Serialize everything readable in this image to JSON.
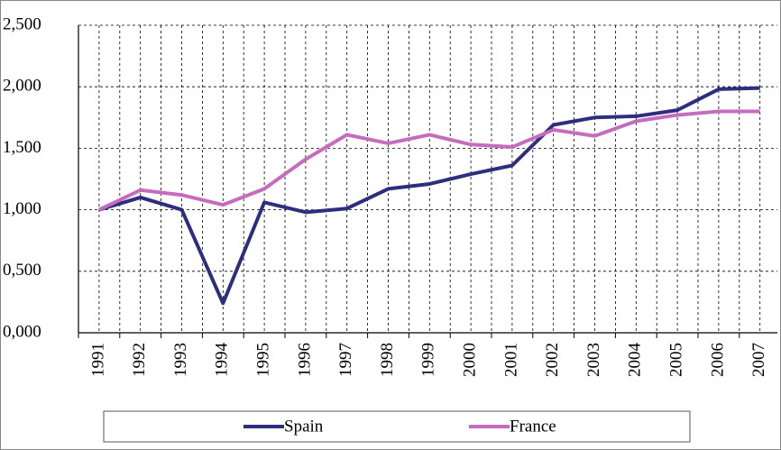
{
  "chart_data": {
    "type": "line",
    "categories": [
      "1991",
      "1992",
      "1993",
      "1994",
      "1995",
      "1996",
      "1997",
      "1998",
      "1999",
      "2000",
      "2001",
      "2002",
      "2003",
      "2004",
      "2005",
      "2006",
      "2007"
    ],
    "series": [
      {
        "name": "Spain",
        "color": "#2e2e7e",
        "values": [
          1.0,
          1.1,
          1.0,
          0.24,
          1.06,
          0.98,
          1.01,
          1.17,
          1.21,
          1.29,
          1.36,
          1.69,
          1.75,
          1.76,
          1.81,
          1.98,
          1.99
        ]
      },
      {
        "name": "France",
        "color": "#c66cbf",
        "values": [
          1.0,
          1.16,
          1.12,
          1.04,
          1.17,
          1.41,
          1.61,
          1.54,
          1.61,
          1.53,
          1.51,
          1.65,
          1.6,
          1.72,
          1.77,
          1.8,
          1.8
        ]
      }
    ],
    "ylim": [
      0,
      2.5
    ],
    "yticks": [
      {
        "value": 0,
        "label": "0,000"
      },
      {
        "value": 0.5,
        "label": "0,500"
      },
      {
        "value": 1,
        "label": "1,000"
      },
      {
        "value": 1.5,
        "label": "1,500"
      },
      {
        "value": 2,
        "label": "2,000"
      },
      {
        "value": 2.5,
        "label": "2,500"
      }
    ],
    "grid": true,
    "legend": "bottom"
  }
}
